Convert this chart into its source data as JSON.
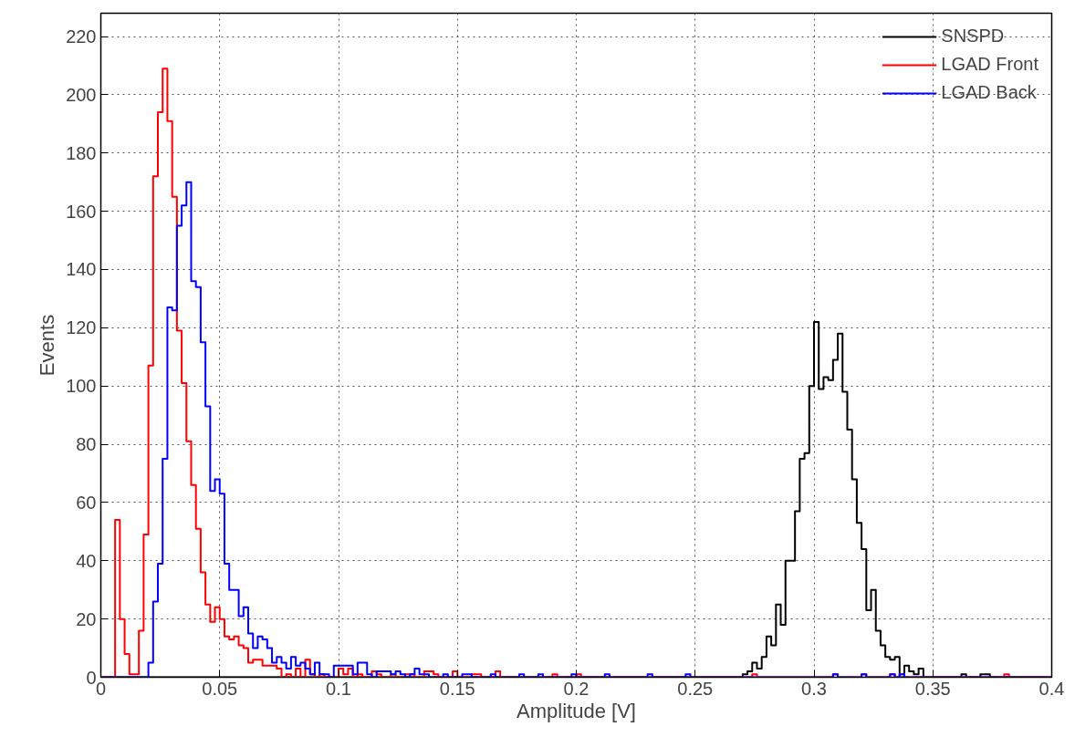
{
  "chart_data": {
    "type": "histogram",
    "xlabel": "Amplitude [V]",
    "ylabel": "Events",
    "bins": [
      0,
      0.002,
      0.004,
      0.006,
      0.008,
      0.01,
      0.012,
      0.014,
      0.016,
      0.018,
      0.02,
      0.022,
      0.024,
      0.026,
      0.028,
      0.03,
      0.032,
      0.034,
      0.036,
      0.038,
      0.04,
      0.042,
      0.044,
      0.046,
      0.048,
      0.05,
      0.052,
      0.054,
      0.056,
      0.058,
      0.06,
      0.062,
      0.064,
      0.066,
      0.068,
      0.07,
      0.072,
      0.074,
      0.076,
      0.078,
      0.08,
      0.082,
      0.084,
      0.086,
      0.088,
      0.09,
      0.092,
      0.094,
      0.096,
      0.098,
      0.1,
      0.102,
      0.104,
      0.106,
      0.108,
      0.11,
      0.112,
      0.114,
      0.116,
      0.118,
      0.12,
      0.122,
      0.124,
      0.126,
      0.128,
      0.13,
      0.132,
      0.134,
      0.136,
      0.138,
      0.14,
      0.142,
      0.144,
      0.146,
      0.148,
      0.15,
      0.152,
      0.154,
      0.156,
      0.158,
      0.16,
      0.162,
      0.164,
      0.166,
      0.168,
      0.17,
      0.172,
      0.174,
      0.176,
      0.178,
      0.18,
      0.182,
      0.184,
      0.186,
      0.188,
      0.19,
      0.192,
      0.194,
      0.196,
      0.198,
      0.2,
      0.202,
      0.204,
      0.206,
      0.208,
      0.21,
      0.212,
      0.214,
      0.216,
      0.218,
      0.22,
      0.222,
      0.224,
      0.226,
      0.228,
      0.23,
      0.232,
      0.234,
      0.236,
      0.238,
      0.24,
      0.242,
      0.244,
      0.246,
      0.248,
      0.25,
      0.252,
      0.254,
      0.256,
      0.258,
      0.26,
      0.262,
      0.264,
      0.266,
      0.268,
      0.27,
      0.272,
      0.274,
      0.276,
      0.278,
      0.28,
      0.282,
      0.284,
      0.286,
      0.288,
      0.29,
      0.292,
      0.294,
      0.296,
      0.298,
      0.3,
      0.302,
      0.304,
      0.306,
      0.308,
      0.31,
      0.312,
      0.314,
      0.316,
      0.318,
      0.32,
      0.322,
      0.324,
      0.326,
      0.328,
      0.33,
      0.332,
      0.334,
      0.336,
      0.338,
      0.34,
      0.342,
      0.344,
      0.346,
      0.348,
      0.35,
      0.352,
      0.354,
      0.356,
      0.358,
      0.36,
      0.362,
      0.364,
      0.366,
      0.368,
      0.37,
      0.372,
      0.374,
      0.376,
      0.378,
      0.38,
      0.382,
      0.384,
      0.386,
      0.388,
      0.39,
      0.392,
      0.394,
      0.396,
      0.398,
      0.4
    ],
    "series": [
      {
        "name": "SNSPD",
        "color": "#000000",
        "values": [
          0,
          0,
          0,
          0,
          0,
          0,
          0,
          0,
          0,
          0,
          0,
          0,
          0,
          0,
          0,
          0,
          0,
          0,
          0,
          0,
          0,
          0,
          0,
          0,
          0,
          0,
          0,
          0,
          0,
          0,
          0,
          0,
          0,
          0,
          0,
          0,
          0,
          0,
          0,
          0,
          0,
          0,
          0,
          0,
          0,
          0,
          0,
          0,
          0,
          0,
          0,
          0,
          0,
          0,
          0,
          0,
          0,
          0,
          0,
          0,
          0,
          0,
          0,
          0,
          0,
          0,
          0,
          0,
          0,
          0,
          0,
          0,
          0,
          0,
          0,
          0,
          0,
          0,
          0,
          0,
          0,
          0,
          0,
          0,
          0,
          0,
          0,
          0,
          0,
          0,
          0,
          0,
          0,
          0,
          0,
          0,
          0,
          0,
          0,
          0,
          0,
          0,
          0,
          0,
          0,
          0,
          0,
          0,
          0,
          0,
          0,
          0,
          0,
          0,
          0,
          0,
          0,
          0,
          0,
          0,
          0,
          0,
          0,
          0,
          0,
          0,
          0,
          0,
          0,
          0,
          0,
          0,
          0,
          0,
          0,
          1,
          2,
          5,
          3,
          7,
          14,
          11,
          25,
          18,
          40,
          40,
          57,
          75,
          77,
          100,
          122,
          99,
          103,
          102,
          109,
          118,
          98,
          85,
          68,
          53,
          44,
          23,
          30,
          16,
          11,
          7,
          6,
          7,
          0,
          4,
          2,
          1,
          3,
          0,
          0,
          0,
          0,
          0,
          0,
          0,
          0,
          1,
          0,
          0,
          0,
          1,
          1,
          0,
          0,
          0,
          0,
          0,
          0,
          0,
          0,
          0,
          0,
          0,
          0,
          0
        ]
      },
      {
        "name": "LGAD Front",
        "color": "#ff0000",
        "values": [
          0,
          0,
          0,
          54,
          20,
          8,
          1,
          1,
          16,
          49,
          107,
          172,
          194,
          209,
          191,
          165,
          119,
          101,
          81,
          66,
          51,
          36,
          25,
          19,
          24,
          20,
          14,
          13,
          14,
          11,
          10,
          5,
          6,
          6,
          4,
          4,
          4,
          3,
          0,
          1,
          0,
          3,
          0,
          6,
          1,
          0,
          1,
          0,
          0,
          0,
          3,
          1,
          3,
          0,
          1,
          0,
          0,
          2,
          1,
          0,
          0,
          1,
          0,
          0,
          1,
          1,
          0,
          0,
          2,
          2,
          1,
          0,
          0,
          0,
          2,
          0,
          0,
          0,
          1,
          1,
          0,
          0,
          0,
          2,
          0,
          0,
          0,
          0,
          0,
          0,
          0,
          0,
          0,
          0,
          0,
          1,
          0,
          0,
          0,
          0,
          1,
          0,
          0,
          0,
          0,
          0,
          0,
          0,
          0,
          0,
          0,
          0,
          0,
          0,
          0,
          0,
          0,
          0,
          0,
          0,
          0,
          0,
          0,
          0,
          0,
          0,
          0,
          0,
          0,
          0,
          0,
          0,
          0,
          0,
          0,
          0,
          0,
          1,
          0,
          0,
          0,
          0,
          0,
          0,
          0,
          0,
          0,
          0,
          0,
          0,
          0,
          0,
          0,
          0,
          1,
          0,
          0,
          0,
          0,
          0,
          1,
          0,
          0,
          0,
          0,
          0,
          1,
          0,
          1,
          0,
          0,
          0,
          0,
          0,
          0,
          0,
          0,
          0,
          0,
          0,
          0,
          0,
          0,
          0,
          0,
          0,
          0,
          0,
          0,
          0,
          1,
          0,
          0,
          0,
          0,
          0,
          0,
          0,
          0,
          0
        ]
      },
      {
        "name": "LGAD Back",
        "color": "#0000ff",
        "values": [
          0,
          0,
          0,
          0,
          0,
          0,
          0,
          0,
          0,
          0,
          5,
          26,
          39,
          75,
          127,
          126,
          155,
          162,
          170,
          136,
          134,
          115,
          93,
          64,
          68,
          63,
          39,
          30,
          30,
          21,
          24,
          15,
          10,
          14,
          13,
          10,
          5,
          7,
          5,
          3,
          7,
          4,
          5,
          3,
          1,
          5,
          1,
          1,
          0,
          4,
          4,
          4,
          4,
          1,
          5,
          5,
          1,
          0,
          2,
          2,
          2,
          1,
          2,
          1,
          0,
          1,
          3,
          1,
          1,
          0,
          0,
          0,
          1,
          0,
          0,
          0,
          1,
          1,
          0,
          0,
          0,
          0,
          1,
          0,
          0,
          0,
          0,
          0,
          1,
          0,
          0,
          0,
          1,
          0,
          0,
          0,
          0,
          0,
          0,
          1,
          0,
          0,
          0,
          0,
          0,
          0,
          1,
          0,
          0,
          0,
          0,
          0,
          0,
          0,
          0,
          1,
          0,
          0,
          0,
          0,
          0,
          0,
          0,
          1,
          0,
          0,
          0,
          0,
          0,
          0,
          0,
          0,
          0,
          0,
          0,
          0,
          0,
          0,
          0,
          0,
          0,
          0,
          0,
          0,
          0,
          0,
          0,
          0,
          0,
          0,
          0,
          0,
          0,
          0,
          1,
          0,
          0,
          0,
          0,
          0,
          1,
          0,
          0,
          0,
          0,
          0,
          1,
          0,
          1,
          0,
          0,
          0,
          0,
          0,
          0,
          0,
          0,
          0,
          0,
          0,
          0,
          0,
          0,
          0,
          0,
          0,
          0,
          0,
          0,
          0,
          0,
          0,
          0,
          0,
          0,
          0,
          0,
          0,
          0,
          0
        ]
      }
    ],
    "xlim": [
      0,
      0.4
    ],
    "ylim": [
      0,
      228
    ],
    "xticks": [
      0,
      0.05,
      0.1,
      0.15,
      0.2,
      0.25,
      0.3,
      0.35,
      0.4
    ],
    "yticks": [
      0,
      20,
      40,
      60,
      80,
      100,
      120,
      140,
      160,
      180,
      200,
      220
    ],
    "grid": true,
    "legend": "top right",
    "line_style": "solid"
  }
}
